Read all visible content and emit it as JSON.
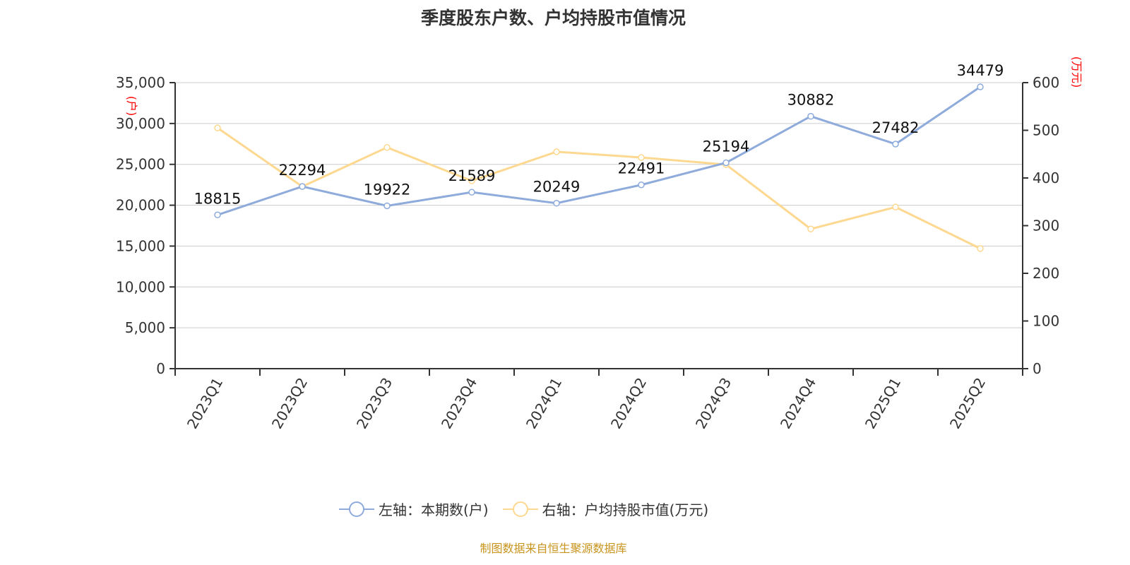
{
  "chart_data": {
    "type": "line",
    "title": "季度股东户数、户均持股市值情况",
    "categories": [
      "2023Q1",
      "2023Q2",
      "2023Q3",
      "2023Q4",
      "2024Q1",
      "2024Q2",
      "2024Q3",
      "2024Q4",
      "2025Q1",
      "2025Q2"
    ],
    "series": [
      {
        "name": "左轴：本期数(户)",
        "axis": "left",
        "color": "#8eabdb",
        "values": [
          18815,
          22294,
          19922,
          21589,
          20249,
          22491,
          25194,
          30882,
          27482,
          34479
        ],
        "labels_shown": true
      },
      {
        "name": "右轴：户均持股市值(万元)",
        "axis": "right",
        "color": "#fdd890",
        "values": [
          505,
          382,
          464,
          394,
          455,
          443,
          428,
          293,
          339,
          252
        ],
        "labels_shown": false
      }
    ],
    "left_axis": {
      "label": "(户)",
      "ylim": [
        0,
        35000
      ],
      "ticks": [
        "0",
        "5,000",
        "10,000",
        "15,000",
        "20,000",
        "25,000",
        "30,000",
        "35,000"
      ]
    },
    "right_axis": {
      "label": "(万元)",
      "ylim": [
        0,
        600
      ],
      "ticks": [
        "0",
        "100",
        "200",
        "300",
        "400",
        "500",
        "600"
      ]
    },
    "grid": true,
    "legend_placement": "bottom"
  },
  "source": "制图数据来自恒生聚源数据库"
}
